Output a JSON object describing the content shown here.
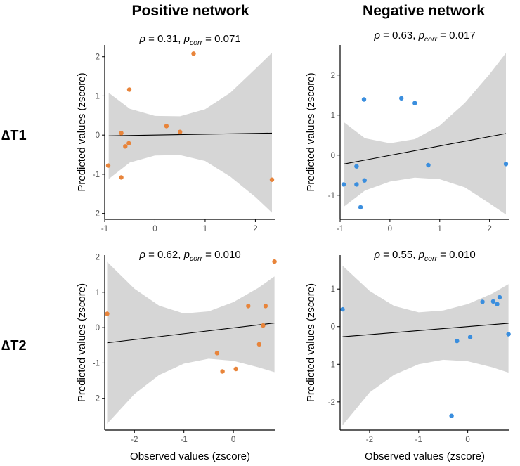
{
  "column_titles": [
    "Positive network",
    "Negative network"
  ],
  "row_labels": [
    "∆T1",
    "∆T2"
  ],
  "colors": {
    "positive": "#E8843A",
    "negative": "#3A8EDE",
    "band": "#D6D6D6",
    "fit": "#000000"
  },
  "chart_data": [
    {
      "id": "t1_positive",
      "type": "scatter",
      "row": "∆T1",
      "column": "Positive network",
      "stat": {
        "rho": "0.31",
        "p_corr": "0.071"
      },
      "xlabel": "",
      "ylabel": "Predicted values (zscore)",
      "xlim": [
        -1.0,
        2.4
      ],
      "ylim": [
        -2.15,
        2.3
      ],
      "xticks": [
        -1,
        0,
        1,
        2
      ],
      "yticks": [
        -2,
        -1,
        0,
        1,
        2
      ],
      "xtick_labels": [
        "-1",
        "0",
        "1",
        "2"
      ],
      "ytick_labels": [
        "-2",
        "-1",
        "0",
        "1",
        "2"
      ],
      "color": "#E8843A",
      "points": [
        [
          -0.93,
          -0.78
        ],
        [
          -0.67,
          0.05
        ],
        [
          -0.67,
          -1.08
        ],
        [
          -0.59,
          -0.29
        ],
        [
          -0.52,
          -0.21
        ],
        [
          -0.51,
          1.16
        ],
        [
          0.23,
          0.23
        ],
        [
          0.5,
          0.08
        ],
        [
          0.77,
          2.08
        ],
        [
          2.33,
          -1.14
        ]
      ],
      "fit": {
        "x": [
          -0.92,
          2.33
        ],
        "y": [
          -0.02,
          0.05
        ]
      },
      "band": {
        "x": [
          -0.92,
          -0.5,
          0,
          0.5,
          1,
          1.5,
          2.0,
          2.33
        ],
        "upper": [
          1.08,
          0.67,
          0.49,
          0.48,
          0.66,
          1.08,
          1.69,
          2.1
        ],
        "lower": [
          -1.12,
          -0.7,
          -0.52,
          -0.51,
          -0.66,
          -1.06,
          -1.58,
          -1.98
        ]
      }
    },
    {
      "id": "t1_negative",
      "type": "scatter",
      "row": "∆T1",
      "column": "Negative network",
      "stat": {
        "rho": "0.63",
        "p_corr": "0.017"
      },
      "xlabel": "",
      "ylabel": "Predicted values (zscore)",
      "xlim": [
        -1.0,
        2.4
      ],
      "ylim": [
        -1.6,
        2.75
      ],
      "xticks": [
        -1,
        0,
        1,
        2
      ],
      "yticks": [
        -1,
        0,
        1,
        2
      ],
      "xtick_labels": [
        "-1",
        "0",
        "1",
        "2"
      ],
      "ytick_labels": [
        "-1",
        "0",
        "1",
        "2"
      ],
      "color": "#3A8EDE",
      "points": [
        [
          -0.93,
          -0.73
        ],
        [
          -0.67,
          -0.28
        ],
        [
          -0.67,
          -0.73
        ],
        [
          -0.59,
          -1.3
        ],
        [
          -0.52,
          1.39
        ],
        [
          -0.51,
          -0.63
        ],
        [
          0.23,
          1.42
        ],
        [
          0.5,
          1.3
        ],
        [
          0.77,
          -0.25
        ],
        [
          2.33,
          -0.22
        ]
      ],
      "fit": {
        "x": [
          -0.92,
          2.33
        ],
        "y": [
          -0.22,
          0.54
        ]
      },
      "band": {
        "x": [
          -0.92,
          -0.5,
          0,
          0.5,
          1,
          1.5,
          2.0,
          2.33
        ],
        "upper": [
          0.82,
          0.42,
          0.3,
          0.4,
          0.74,
          1.3,
          2.02,
          2.55
        ],
        "lower": [
          -1.28,
          -0.88,
          -0.66,
          -0.56,
          -0.6,
          -0.8,
          -1.2,
          -1.48
        ]
      }
    },
    {
      "id": "t2_positive",
      "type": "scatter",
      "row": "∆T2",
      "column": "Positive network",
      "stat": {
        "rho": "0.62",
        "p_corr": "0.010"
      },
      "xlabel": "Observed values (zscore)",
      "ylabel": "Predicted values (zscore)",
      "xlim": [
        -2.6,
        0.85
      ],
      "ylim": [
        -2.9,
        2.05
      ],
      "xticks": [
        -2,
        -1,
        0
      ],
      "yticks": [
        -2,
        -1,
        0,
        1,
        2
      ],
      "xtick_labels": [
        "-2",
        "-1",
        "0"
      ],
      "ytick_labels": [
        "-2",
        "-1",
        "0",
        "1",
        "2"
      ],
      "color": "#E8843A",
      "points": [
        [
          -2.55,
          0.39
        ],
        [
          -0.33,
          -0.72
        ],
        [
          -0.22,
          -1.24
        ],
        [
          0.05,
          -1.17
        ],
        [
          0.3,
          0.61
        ],
        [
          0.52,
          -0.47
        ],
        [
          0.6,
          0.06
        ],
        [
          0.65,
          0.61
        ],
        [
          0.83,
          1.87
        ]
      ],
      "fit": {
        "x": [
          -2.55,
          0.83
        ],
        "y": [
          -0.43,
          0.13
        ]
      },
      "band": {
        "x": [
          -2.55,
          -2.0,
          -1.5,
          -1.0,
          -0.5,
          0,
          0.5,
          0.83
        ],
        "upper": [
          1.86,
          1.1,
          0.62,
          0.4,
          0.46,
          0.72,
          1.12,
          1.45
        ],
        "lower": [
          -2.72,
          -1.88,
          -1.34,
          -1.02,
          -0.88,
          -0.94,
          -1.12,
          -1.26
        ]
      }
    },
    {
      "id": "t2_negative",
      "type": "scatter",
      "row": "∆T2",
      "column": "Negative network",
      "stat": {
        "rho": "0.55",
        "p_corr": "0.010"
      },
      "xlabel": "Observed values (zscore)",
      "ylabel": "Predicted values (zscore)",
      "xlim": [
        -2.6,
        0.85
      ],
      "ylim": [
        -2.75,
        1.9
      ],
      "xticks": [
        -2,
        -1,
        0
      ],
      "yticks": [
        -2,
        -1,
        0,
        1
      ],
      "xtick_labels": [
        "-2",
        "-1",
        "0"
      ],
      "ytick_labels": [
        "-2",
        "-1",
        "0",
        "1"
      ],
      "color": "#3A8EDE",
      "points": [
        [
          -2.55,
          0.46
        ],
        [
          -0.33,
          -2.37
        ],
        [
          -0.22,
          -0.38
        ],
        [
          0.05,
          -0.28
        ],
        [
          0.3,
          0.66
        ],
        [
          0.52,
          0.67
        ],
        [
          0.6,
          0.6
        ],
        [
          0.65,
          0.78
        ],
        [
          0.83,
          -0.2
        ]
      ],
      "fit": {
        "x": [
          -2.55,
          0.83
        ],
        "y": [
          -0.27,
          0.09
        ]
      },
      "band": {
        "x": [
          -2.55,
          -2.0,
          -1.5,
          -1.0,
          -0.5,
          0,
          0.5,
          0.83
        ],
        "upper": [
          1.62,
          0.95,
          0.55,
          0.38,
          0.43,
          0.6,
          0.88,
          1.13
        ],
        "lower": [
          -2.62,
          -1.75,
          -1.28,
          -1.0,
          -0.88,
          -0.92,
          -1.08,
          -1.22
        ]
      }
    }
  ]
}
